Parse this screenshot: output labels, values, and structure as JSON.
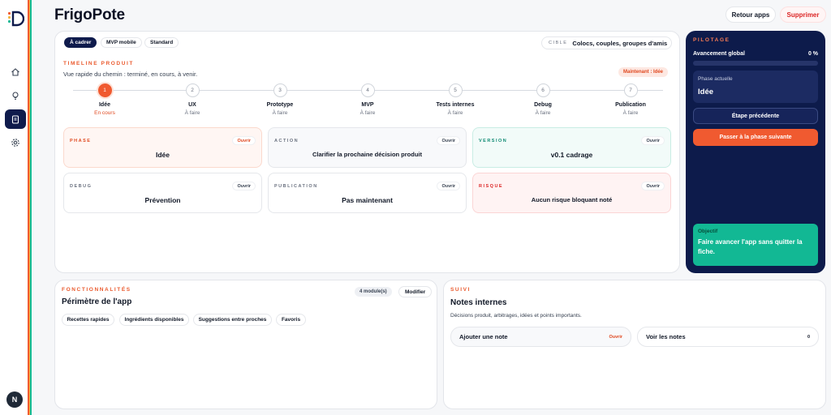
{
  "app": {
    "title": "FrigoPote",
    "avatar_letter": "N"
  },
  "header": {
    "back_label": "Retour apps",
    "delete_label": "Supprimer"
  },
  "sidebar": {
    "items": [
      {
        "icon": "home-icon"
      },
      {
        "icon": "lightbulb-icon"
      },
      {
        "icon": "clipboard-icon",
        "active": true
      },
      {
        "icon": "gear-icon"
      }
    ],
    "stripe_colors": [
      "#f05a30",
      "#f4b63f",
      "#12b894"
    ]
  },
  "scope_tabs": [
    {
      "label": "À cadrer",
      "active": true
    },
    {
      "label": "MVP mobile"
    },
    {
      "label": "Standard"
    }
  ],
  "cible": {
    "key": "CIBLE",
    "value": "Colocs, couples, groupes d'amis"
  },
  "timeline": {
    "label": "TIMELINE PRODUIT",
    "subtitle": "Vue rapide du chemin : terminé, en cours, à venir.",
    "now_badge": "Maintenant : Idée",
    "steps": [
      {
        "num": "1",
        "label": "Idée",
        "status": "En cours",
        "active": true
      },
      {
        "num": "2",
        "label": "UX",
        "status": "À faire"
      },
      {
        "num": "3",
        "label": "Prototype",
        "status": "À faire"
      },
      {
        "num": "4",
        "label": "MVP",
        "status": "À faire"
      },
      {
        "num": "5",
        "label": "Tests internes",
        "status": "À faire"
      },
      {
        "num": "6",
        "label": "Debug",
        "status": "À faire"
      },
      {
        "num": "7",
        "label": "Publication",
        "status": "À faire"
      }
    ]
  },
  "tiles": {
    "open_label": "Ouvrir",
    "phase": {
      "key": "PHASE",
      "value": "Idée"
    },
    "action": {
      "key": "ACTION",
      "value": "Clarifier la prochaine décision produit"
    },
    "version": {
      "key": "VERSION",
      "value": "v0.1 cadrage"
    },
    "debug": {
      "key": "DEBUG",
      "value": "Prévention"
    },
    "publication": {
      "key": "PUBLICATION",
      "value": "Pas maintenant"
    },
    "risque": {
      "key": "RISQUE",
      "value": "Aucun risque bloquant noté"
    }
  },
  "pilotage": {
    "label": "PILOTAGE",
    "progress_label": "Avancement global",
    "progress_value": "0 %",
    "progress_fraction": 0,
    "phase_key": "Phase actuelle",
    "phase_value": "Idée",
    "prev_button": "Étape précédente",
    "next_button": "Passer à la phase suivante",
    "objective_key": "Objectif",
    "objective_value": "Faire avancer l'app sans quitter la fiche."
  },
  "fonctionnalites": {
    "label": "FONCTIONNALITÉS",
    "title": "Périmètre de l'app",
    "count": "4 module(s)",
    "edit_button": "Modifier",
    "chips": [
      "Recettes rapides",
      "Ingrédients disponibles",
      "Suggestions entre proches",
      "Favoris"
    ]
  },
  "suivi": {
    "label": "SUIVI",
    "title": "Notes internes",
    "description": "Décisions produit, arbitrages, idées et points importants.",
    "add_note": "Ajouter une note",
    "add_note_action": "Ouvrir",
    "see_notes": "Voir les notes",
    "notes_count": "0"
  }
}
